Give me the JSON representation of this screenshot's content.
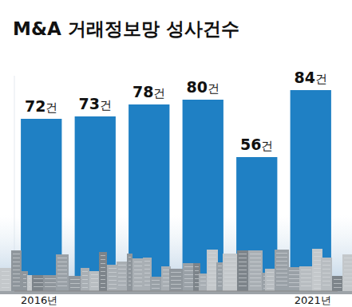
{
  "chart_data": {
    "type": "bar",
    "title": "M&A 거래정보망 성사건수",
    "categories": [
      "2016년",
      null,
      null,
      null,
      null,
      "2021년"
    ],
    "values": [
      72,
      73,
      78,
      80,
      56,
      84
    ],
    "value_labels": [
      "72건",
      "73건",
      "78건",
      "80건",
      "56건",
      "84건"
    ],
    "color": "#1f80c4",
    "ylim": [
      0,
      90
    ],
    "data_labels": true,
    "tick_labels": "x",
    "grid": false
  }
}
